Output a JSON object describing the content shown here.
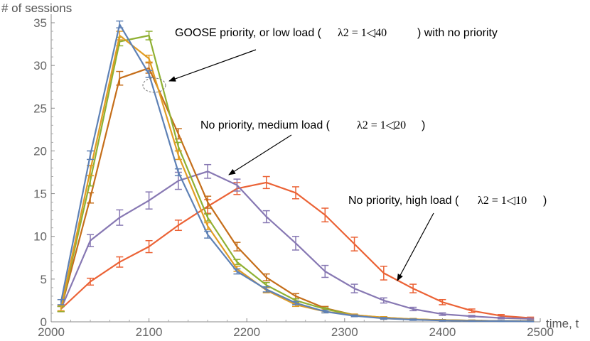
{
  "chart_data": {
    "type": "line",
    "title": "",
    "xlabel": "time, t",
    "ylabel": "# of sessions",
    "xlim": [
      2000,
      2500
    ],
    "ylim": [
      0,
      35
    ],
    "xticks": [
      "2000",
      "2100",
      "2200",
      "2300",
      "2400",
      "2500"
    ],
    "yticks": [
      "0",
      "5",
      "10",
      "15",
      "20",
      "25",
      "30",
      "35"
    ],
    "error_bars": true,
    "series": [
      {
        "name": "blue",
        "color": "#5e81b5",
        "x": [
          2010,
          2040,
          2070,
          2100,
          2130,
          2160,
          2190,
          2220,
          2250,
          2280,
          2310,
          2340,
          2370,
          2400,
          2430,
          2460,
          2490
        ],
        "y": [
          2.3,
          19.5,
          34.8,
          29.0,
          17.5,
          10.2,
          5.9,
          3.8,
          2.2,
          1.2,
          0.7,
          0.4,
          0.25,
          0.15,
          0.1,
          0.08,
          0.05
        ],
        "err": [
          0.3,
          0.5,
          0.4,
          0.4,
          0.4,
          0.4,
          0.3,
          0.3,
          0.2,
          0.15,
          0.1,
          0.1,
          0.08,
          0.06,
          0.05,
          0.05,
          0.04
        ]
      },
      {
        "name": "orange",
        "color": "#e19c24",
        "x": [
          2010,
          2040,
          2070,
          2100,
          2130,
          2160,
          2190,
          2220,
          2250,
          2280,
          2310,
          2340,
          2370,
          2400,
          2430,
          2460,
          2490
        ],
        "y": [
          1.6,
          17.7,
          33.5,
          30.8,
          19.5,
          11.2,
          6.2,
          3.7,
          2.0,
          1.2,
          0.8,
          0.5,
          0.3,
          0.2,
          0.15,
          0.1,
          0.08
        ],
        "err": [
          0.3,
          0.6,
          0.5,
          0.4,
          0.5,
          0.4,
          0.3,
          0.3,
          0.2,
          0.15,
          0.1,
          0.1,
          0.08,
          0.06,
          0.05,
          0.05,
          0.04
        ]
      },
      {
        "name": "green",
        "color": "#8fb032",
        "x": [
          2010,
          2040,
          2070,
          2100,
          2130,
          2160,
          2190,
          2220,
          2250,
          2280,
          2310,
          2340,
          2370,
          2400,
          2430,
          2460,
          2490
        ],
        "y": [
          1.5,
          16.5,
          32.8,
          33.5,
          20.5,
          12.2,
          7.0,
          4.3,
          2.5,
          1.5,
          0.8,
          0.5,
          0.3,
          0.2,
          0.15,
          0.1,
          0.08
        ],
        "err": [
          0.3,
          0.6,
          0.5,
          0.5,
          0.5,
          0.4,
          0.3,
          0.3,
          0.2,
          0.15,
          0.1,
          0.1,
          0.08,
          0.06,
          0.05,
          0.05,
          0.04
        ]
      },
      {
        "name": "dark orange",
        "color": "#c56e1a",
        "x": [
          2010,
          2040,
          2070,
          2100,
          2130,
          2160,
          2190,
          2220,
          2250,
          2280,
          2310,
          2340,
          2370,
          2400,
          2430,
          2460,
          2490
        ],
        "y": [
          1.5,
          14.5,
          28.5,
          29.7,
          22.0,
          14.0,
          8.8,
          5.2,
          3.0,
          1.6,
          0.8,
          0.4,
          0.3,
          0.2,
          0.15,
          0.1,
          0.08
        ],
        "err": [
          0.3,
          0.6,
          0.8,
          0.6,
          0.6,
          0.7,
          0.5,
          0.4,
          0.3,
          0.2,
          0.1,
          0.1,
          0.08,
          0.06,
          0.05,
          0.05,
          0.04
        ]
      },
      {
        "name": "purple",
        "color": "#8778b3",
        "x": [
          2010,
          2040,
          2070,
          2100,
          2130,
          2160,
          2190,
          2220,
          2250,
          2280,
          2310,
          2340,
          2370,
          2400,
          2430,
          2460,
          2490
        ],
        "y": [
          1.5,
          9.5,
          12.2,
          14.2,
          16.5,
          17.6,
          16.0,
          12.3,
          9.2,
          5.9,
          3.9,
          2.5,
          1.5,
          0.9,
          0.65,
          0.45,
          0.35
        ],
        "err": [
          0.3,
          0.7,
          0.9,
          1.0,
          1.0,
          0.8,
          0.7,
          0.7,
          0.8,
          0.7,
          0.5,
          0.3,
          0.2,
          0.15,
          0.1,
          0.1,
          0.08
        ]
      },
      {
        "name": "red",
        "color": "#eb6235",
        "x": [
          2010,
          2040,
          2070,
          2100,
          2130,
          2160,
          2190,
          2220,
          2250,
          2280,
          2310,
          2340,
          2370,
          2400,
          2430,
          2460,
          2490
        ],
        "y": [
          1.5,
          4.7,
          7.0,
          8.8,
          11.3,
          13.5,
          15.6,
          16.3,
          15.1,
          12.5,
          9.1,
          5.7,
          3.9,
          2.3,
          1.3,
          0.7,
          0.45
        ],
        "err": [
          0.3,
          0.4,
          0.6,
          0.7,
          0.6,
          0.8,
          0.7,
          0.7,
          0.7,
          0.8,
          0.8,
          0.8,
          0.5,
          0.3,
          0.2,
          0.15,
          0.1
        ]
      }
    ],
    "annotations": [
      {
        "text": "GOOSE priority, or low load (",
        "math": "λ2 = 1◁40",
        "suffix": ") with no priority",
        "target": [
          2123,
          27.5
        ]
      },
      {
        "text": "No priority, medium load (",
        "math": "λ2 = 1◁20",
        "suffix": ")",
        "target": [
          2163,
          17.5
        ]
      },
      {
        "text": "No priority, high load (",
        "math": "λ2 = 1◁10",
        "suffix": ")",
        "target": [
          2343,
          5.0
        ]
      }
    ]
  }
}
